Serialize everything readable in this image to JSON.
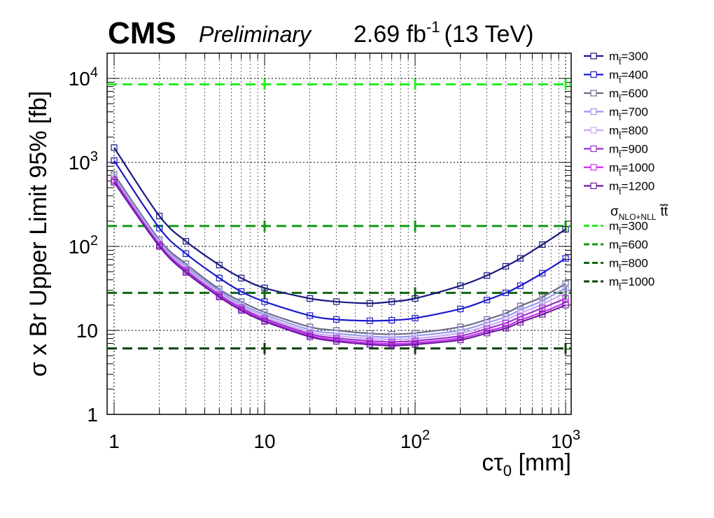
{
  "header": {
    "experiment": "CMS",
    "status": "Preliminary",
    "lumi_value": "2.69 fb",
    "lumi_exp": "-1",
    "energy": "(13 TeV)"
  },
  "chart_data": {
    "type": "line",
    "xlabel": "cτ",
    "xlabel_sub": "0",
    "xlabel_unit": " [mm]",
    "ylabel": "σ x Br Upper Limit 95% [fb]",
    "xscale": "log",
    "yscale": "log",
    "xlim": [
      1,
      1000
    ],
    "ylim": [
      1,
      20000
    ],
    "grid": true,
    "legend_position": "right",
    "x_ticks": [
      {
        "value": 1,
        "base": "1",
        "exp": ""
      },
      {
        "value": 10,
        "base": "10",
        "exp": ""
      },
      {
        "value": 100,
        "base": "10",
        "exp": "2"
      },
      {
        "value": 1000,
        "base": "10",
        "exp": "3"
      }
    ],
    "y_ticks": [
      {
        "value": 1,
        "base": "1",
        "exp": ""
      },
      {
        "value": 10,
        "base": "10",
        "exp": ""
      },
      {
        "value": 100,
        "base": "10",
        "exp": "2"
      },
      {
        "value": 1000,
        "base": "10",
        "exp": "3"
      },
      {
        "value": 10000,
        "base": "10",
        "exp": "4"
      }
    ],
    "x": [
      1,
      2,
      3,
      5,
      7,
      10,
      20,
      30,
      50,
      70,
      100,
      200,
      300,
      400,
      500,
      700,
      1000
    ],
    "series": [
      {
        "name": "m_t̃=300",
        "color": "#1a1a80",
        "values": [
          1500,
          230,
          115,
          60,
          42,
          32,
          24,
          22,
          21,
          22,
          24,
          34,
          45,
          58,
          72,
          105,
          160
        ]
      },
      {
        "name": "m_t̃=400",
        "color": "#1a1acc",
        "values": [
          1050,
          165,
          82,
          42,
          29,
          22,
          15,
          13.5,
          13,
          13.2,
          14,
          18,
          23,
          28,
          34,
          48,
          72
        ]
      },
      {
        "name": "m_t̃=600",
        "color": "#6a6a8a",
        "values": [
          720,
          120,
          62,
          31,
          22,
          16.5,
          11,
          10,
          9.2,
          9,
          9.3,
          11,
          13.5,
          16,
          19.5,
          25,
          36
        ]
      },
      {
        "name": "m_t̃=700",
        "color": "#9999ee",
        "values": [
          680,
          115,
          58,
          29.5,
          20.5,
          15.5,
          10.2,
          9.2,
          8.5,
          8.3,
          8.6,
          10,
          12.3,
          14.5,
          17.5,
          22.5,
          32
        ]
      },
      {
        "name": "m_t̃=800",
        "color": "#ccaaee",
        "values": [
          650,
          110,
          55,
          28,
          19.5,
          14.6,
          9.6,
          8.6,
          8,
          7.8,
          8,
          9.3,
          11.3,
          13.3,
          16,
          20.5,
          28
        ]
      },
      {
        "name": "m_t̃=900",
        "color": "#9933cc",
        "values": [
          620,
          105,
          52,
          26.5,
          18.5,
          13.8,
          9.1,
          8.1,
          7.5,
          7.3,
          7.5,
          8.6,
          10.5,
          12.2,
          14.5,
          18.5,
          24
        ]
      },
      {
        "name": "m_t̃=1000",
        "color": "#cc33ee",
        "values": [
          600,
          102,
          50,
          25.5,
          17.8,
          13.2,
          8.7,
          7.7,
          7.1,
          6.9,
          7.1,
          8.1,
          9.8,
          11.2,
          13.3,
          16.5,
          21.5
        ]
      },
      {
        "name": "m_t̃=1200",
        "color": "#6a1aa0",
        "values": [
          580,
          100,
          49,
          25,
          17.3,
          12.8,
          8.4,
          7.4,
          6.8,
          6.6,
          6.8,
          7.7,
          9.3,
          10.6,
          12.5,
          15.5,
          20
        ]
      }
    ],
    "xsec_title": "σ",
    "xsec_sub": "NLO+NLL",
    "xsec_process": "t̃t̃",
    "xsec_lines": [
      {
        "name": "m_t̃=300",
        "color": "#22ee22",
        "value": 8500
      },
      {
        "name": "m_t̃=600",
        "color": "#119911",
        "value": 175
      },
      {
        "name": "m_t̃=800",
        "color": "#116611",
        "value": 28
      },
      {
        "name": "m_t̃=1000",
        "color": "#0a400a",
        "value": 6.1
      }
    ]
  }
}
